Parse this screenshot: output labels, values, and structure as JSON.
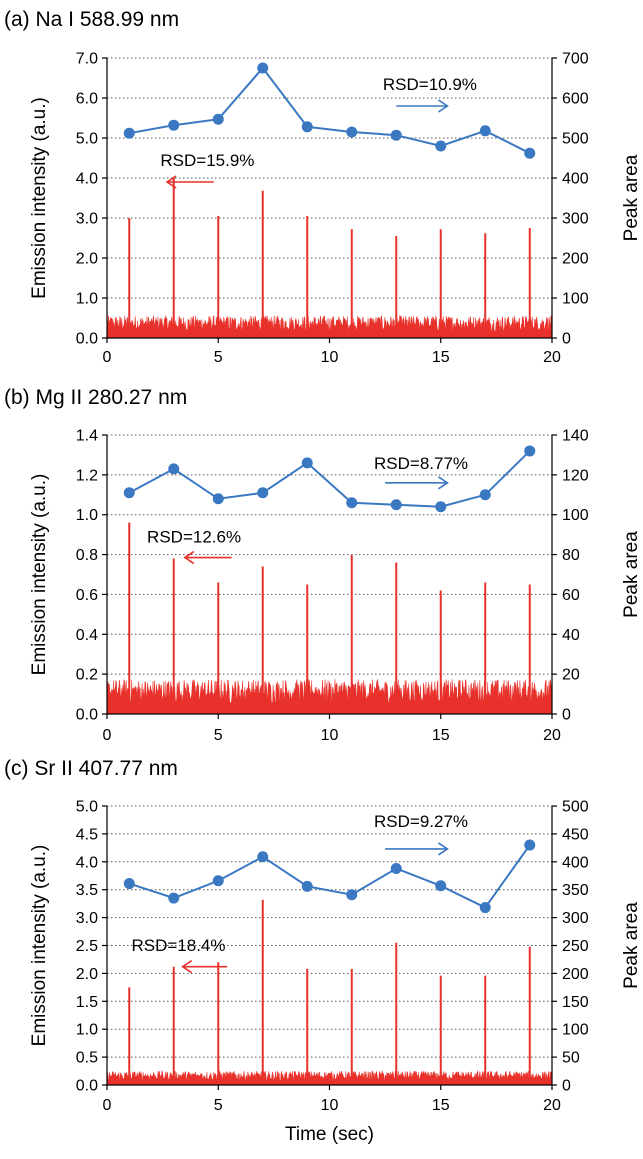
{
  "chart_data": [
    {
      "type": "line",
      "title": "(a) Na I 588.99 nm",
      "xlabel": "",
      "ylabel": "Emission intensity (a.u.)",
      "y2label": "Peak area",
      "xlim": [
        0,
        20
      ],
      "xticks": [
        "0",
        "5",
        "10",
        "15",
        "20"
      ],
      "ylim": [
        0,
        7.0
      ],
      "yticks": [
        "0.0",
        "1.0",
        "2.0",
        "3.0",
        "4.0",
        "5.0",
        "6.0",
        "7.0"
      ],
      "y2lim": [
        0,
        700
      ],
      "y2ticks": [
        "0",
        "100",
        "200",
        "300",
        "400",
        "500",
        "600",
        "700"
      ],
      "grid": "horizontal-dotted",
      "emission_trace": {
        "axis": "left",
        "color": "#e8312a",
        "baseline_level": 0.45,
        "peak_x": [
          1,
          3,
          5,
          7,
          9,
          11,
          13,
          15,
          17,
          19
        ],
        "peak_heights": [
          3.0,
          4.0,
          3.05,
          3.68,
          3.05,
          2.72,
          2.55,
          2.72,
          2.62,
          2.75
        ]
      },
      "series": [
        {
          "axis": "right",
          "color": "#3a78c2",
          "marker": "circle",
          "x": [
            1,
            3,
            5,
            7,
            9,
            11,
            13,
            15,
            17,
            19
          ],
          "values": [
            512,
            532,
            547,
            675,
            528,
            515,
            507,
            480,
            518,
            462
          ]
        }
      ],
      "annotations": [
        {
          "text": "RSD=10.9%",
          "x": 12.4,
          "y_axis": "right",
          "y": 620,
          "arrow": "right",
          "arrow_x": [
            13.0,
            15.3
          ],
          "arrow_y": 580,
          "color": "#3a78c2"
        },
        {
          "text": "RSD=15.9%",
          "x": 2.4,
          "y_axis": "left",
          "y": 4.3,
          "arrow": "left",
          "arrow_x": [
            4.8,
            2.7
          ],
          "arrow_y": 3.9,
          "color": "#e8312a"
        }
      ]
    },
    {
      "type": "line",
      "title": "(b) Mg II 280.27 nm",
      "xlabel": "",
      "ylabel": "Emission intensity (a.u.)",
      "y2label": "Peak area",
      "xlim": [
        0,
        20
      ],
      "xticks": [
        "0",
        "5",
        "10",
        "15",
        "20"
      ],
      "ylim": [
        0,
        1.4
      ],
      "yticks": [
        "0.0",
        "0.2",
        "0.4",
        "0.6",
        "0.8",
        "1.0",
        "1.2",
        "1.4"
      ],
      "y2lim": [
        0,
        140
      ],
      "y2ticks": [
        "0",
        "20",
        "40",
        "60",
        "80",
        "100",
        "120",
        "140"
      ],
      "grid": "horizontal-dotted",
      "emission_trace": {
        "axis": "left",
        "color": "#e8312a",
        "baseline_level": 0.14,
        "peak_x": [
          1,
          3,
          5,
          7,
          9,
          11,
          13,
          15,
          17,
          19
        ],
        "peak_heights": [
          0.96,
          0.78,
          0.66,
          0.74,
          0.65,
          0.8,
          0.76,
          0.62,
          0.66,
          0.65
        ]
      },
      "series": [
        {
          "axis": "right",
          "color": "#3a78c2",
          "marker": "circle",
          "x": [
            1,
            3,
            5,
            7,
            9,
            11,
            13,
            15,
            17,
            19
          ],
          "values": [
            111,
            123,
            108,
            111,
            126,
            106,
            105,
            104,
            110,
            132
          ]
        }
      ],
      "annotations": [
        {
          "text": "RSD=8.77%",
          "x": 12.0,
          "y_axis": "right",
          "y": 123,
          "arrow": "right",
          "arrow_x": [
            12.5,
            15.3
          ],
          "arrow_y": 116,
          "color": "#3a78c2"
        },
        {
          "text": "RSD=12.6%",
          "x": 1.8,
          "y_axis": "left",
          "y": 0.86,
          "arrow": "left",
          "arrow_x": [
            5.6,
            3.5
          ],
          "arrow_y": 0.785,
          "color": "#e8312a"
        }
      ]
    },
    {
      "type": "line",
      "title": "(c) Sr II 407.77 nm",
      "xlabel": "Time (sec)",
      "ylabel": "Emission intensity (a.u.)",
      "y2label": "Peak area",
      "xlim": [
        0,
        20
      ],
      "xticks": [
        "0",
        "5",
        "10",
        "15",
        "20"
      ],
      "ylim": [
        0,
        5.0
      ],
      "yticks": [
        "0.0",
        "0.5",
        "1.0",
        "1.5",
        "2.0",
        "2.5",
        "3.0",
        "3.5",
        "4.0",
        "4.5",
        "5.0"
      ],
      "y2lim": [
        0,
        500
      ],
      "y2ticks": [
        "0",
        "50",
        "100",
        "150",
        "200",
        "250",
        "300",
        "350",
        "400",
        "450",
        "500"
      ],
      "grid": "horizontal-dotted",
      "emission_trace": {
        "axis": "left",
        "color": "#e8312a",
        "baseline_level": 0.2,
        "peak_x": [
          1,
          3,
          5,
          7,
          9,
          11,
          13,
          15,
          17,
          19
        ],
        "peak_heights": [
          1.75,
          2.12,
          2.2,
          3.32,
          2.08,
          2.08,
          2.55,
          1.96,
          1.96,
          2.48
        ]
      },
      "series": [
        {
          "axis": "right",
          "color": "#3a78c2",
          "marker": "circle",
          "x": [
            1,
            3,
            5,
            7,
            9,
            11,
            13,
            15,
            17,
            19
          ],
          "values": [
            361,
            335,
            366,
            409,
            356,
            341,
            388,
            357,
            318,
            430
          ]
        }
      ],
      "annotations": [
        {
          "text": "RSD=9.27%",
          "x": 12.0,
          "y_axis": "right",
          "y": 462,
          "arrow": "right",
          "arrow_x": [
            12.5,
            15.3
          ],
          "arrow_y": 423,
          "color": "#3a78c2"
        },
        {
          "text": "RSD=18.4%",
          "x": 1.1,
          "y_axis": "left",
          "y": 2.4,
          "arrow": "left",
          "arrow_x": [
            5.4,
            3.4
          ],
          "arrow_y": 2.12,
          "color": "#e8312a"
        }
      ]
    }
  ]
}
